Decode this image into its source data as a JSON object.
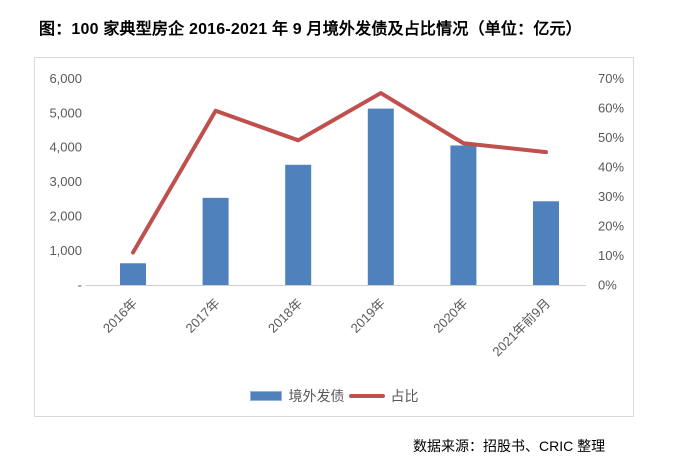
{
  "title": "图：100 家典型房企 2016-2021 年 9 月境外发债及占比情况（单位：亿元）",
  "source": "数据来源：招股书、CRIC 整理",
  "legend": [
    {
      "label": "境外发债",
      "type": "bar"
    },
    {
      "label": "占比",
      "type": "line"
    }
  ],
  "colors": {
    "bar": "#4F81BD",
    "line": "#C0504D",
    "axis_text": "#595959",
    "axis_line": "#cfcdcd",
    "frame_border": "#d9d9d9"
  },
  "chart_data": {
    "type": "bar+line combo",
    "categories": [
      "2016年",
      "2017年",
      "2018年",
      "2019年",
      "2020年",
      "2021年前9月"
    ],
    "series": [
      {
        "name": "境外发债",
        "type": "bar",
        "axis": "left",
        "unit": "亿元",
        "values": [
          630,
          2530,
          3490,
          5120,
          4050,
          2430
        ]
      },
      {
        "name": "占比",
        "type": "line",
        "axis": "right",
        "unit": "%",
        "values": [
          11,
          59,
          49,
          65,
          48,
          45
        ]
      }
    ],
    "left_axis": {
      "min": 0,
      "max": 6000,
      "step": 1000,
      "tick_labels": [
        "-",
        "1,000",
        "2,000",
        "3,000",
        "4,000",
        "5,000",
        "6,000"
      ]
    },
    "right_axis": {
      "min": 0,
      "max": 70,
      "step": 10,
      "tick_labels": [
        "0%",
        "10%",
        "20%",
        "30%",
        "40%",
        "50%",
        "60%",
        "70%"
      ]
    },
    "grid": false,
    "legend_position": "bottom"
  }
}
